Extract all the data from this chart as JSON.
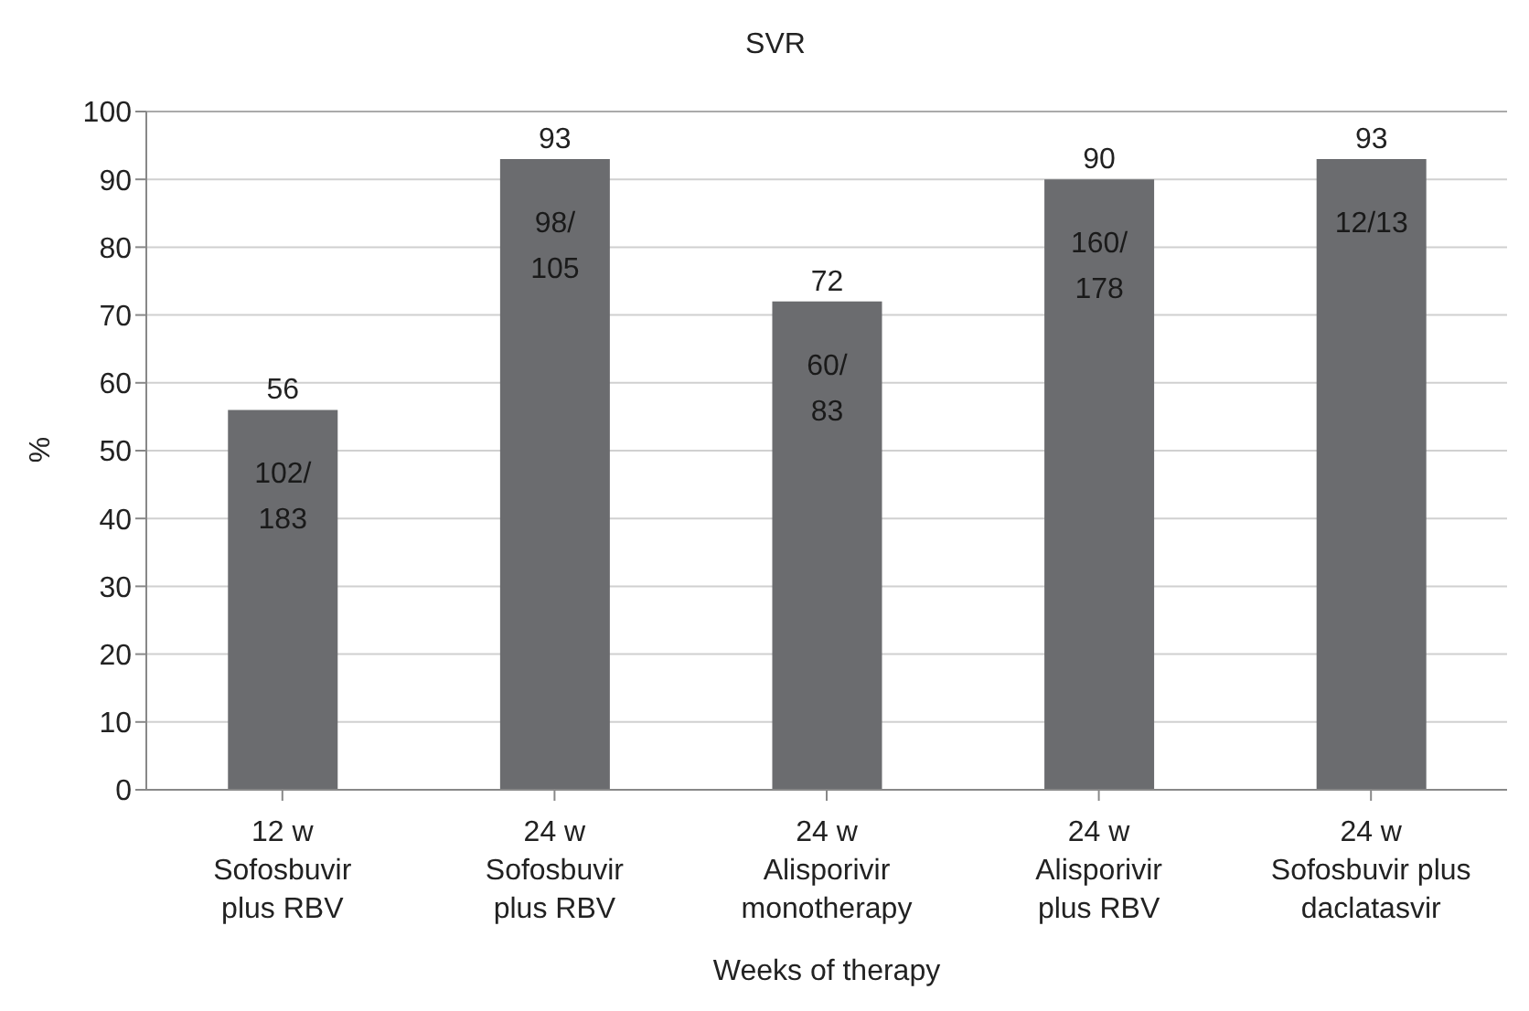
{
  "chart_data": {
    "type": "bar",
    "title": "SVR",
    "xlabel": "Weeks of therapy",
    "ylabel": "%",
    "categories": [
      "12 w\nSofosbuvir\nplus RBV",
      "24 w\nSofosbuvir\nplus RBV",
      "24 w\nAlisporivir\nmonotherapy",
      "24 w\nAlisporivir\nplus RBV",
      "24 w\nSofosbuvir plus\ndaclatasvir"
    ],
    "values": [
      56,
      93,
      72,
      90,
      93
    ],
    "color": "#6b6c6f",
    "data_labels": true,
    "ylim": [
      0,
      100
    ],
    "yticks": [
      0,
      10,
      20,
      30,
      40,
      50,
      60,
      70,
      80,
      90,
      100
    ],
    "grid": "y",
    "annotations": [
      "102/\n183",
      "98/\n105",
      "60/\n83",
      "160/\n178",
      "12/13"
    ]
  }
}
